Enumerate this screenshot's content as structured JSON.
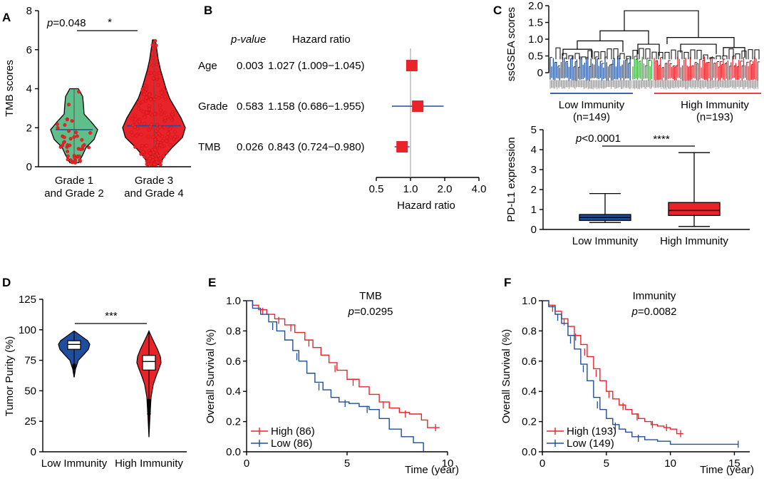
{
  "colors": {
    "green": "#5fbf8a",
    "red": "#e8242a",
    "blue": "#1f4e9e",
    "dend_green": "#3aa83a",
    "black": "#000000",
    "grey": "#9a9a9a"
  },
  "chart_data": [
    {
      "panel": "A",
      "type": "violin",
      "ylabel": "TMB scores",
      "ylim": [
        0,
        8
      ],
      "yticks": [
        "0",
        "2",
        "4",
        "6",
        "8"
      ],
      "groups": [
        {
          "label_line1": "Grade 1",
          "label_line2": "and Grade 2",
          "median": 1.9,
          "min": 0.2,
          "max": 4.0,
          "color": "#5fbf8a",
          "n_points": 45
        },
        {
          "label_line1": "Grade 3",
          "label_line2": "and Grade 4",
          "median": 2.1,
          "min": 0.1,
          "max": 6.5,
          "color": "#e8242a",
          "n_points": 220
        }
      ],
      "p_label": "p",
      "p_value": "=0.048",
      "sig": "*"
    },
    {
      "panel": "B",
      "type": "forest",
      "header_p": "p-value",
      "header_hr": "Hazard ratio",
      "xlabel": "Hazard ratio",
      "xticks": [
        "0.5",
        "1.0",
        "2.0",
        "4.0"
      ],
      "xtick_values": [
        0.5,
        1.0,
        2.0,
        4.0
      ],
      "rows": [
        {
          "name": "Age",
          "p": "0.003",
          "hr_text": "1.027 (1.009−1.045)",
          "hr": 1.027,
          "lo": 1.009,
          "hi": 1.045
        },
        {
          "name": "Grade",
          "p": "0.583",
          "hr_text": "1.158 (0.686−1.955)",
          "hr": 1.158,
          "lo": 0.686,
          "hi": 1.955
        },
        {
          "name": "TMB",
          "p": "0.026",
          "hr_text": "0.843 (0.724−0.980)",
          "hr": 0.843,
          "lo": 0.724,
          "hi": 0.98
        }
      ]
    },
    {
      "panel": "C-top",
      "type": "dendrogram",
      "ylabel": "ssGSEA scores",
      "ylim": [
        0,
        2.0
      ],
      "yticks": [
        "0",
        "0.5",
        "1.0",
        "1.5",
        "2.0"
      ],
      "ytick_values": [
        0,
        0.5,
        1.0,
        1.5,
        2.0
      ],
      "clusters": [
        {
          "label": "Low Immunity",
          "n": "(n=149)",
          "color": "#1f4e9e"
        },
        {
          "label": "High Immunity",
          "n": "(n=193)",
          "color": "#e8242a"
        }
      ]
    },
    {
      "panel": "C-bottom",
      "type": "box",
      "ylabel": "PD-L1 expression",
      "ylim": [
        0,
        5
      ],
      "yticks": [
        "0",
        "1",
        "2",
        "3",
        "4",
        "5"
      ],
      "groups": [
        {
          "label": "Low Immunity",
          "min": 0.35,
          "q1": 0.45,
          "median": 0.6,
          "q3": 0.75,
          "max": 1.8,
          "color": "#1f4e9e"
        },
        {
          "label": "High Immunity",
          "min": 0.15,
          "q1": 0.7,
          "median": 0.95,
          "q3": 1.35,
          "max": 3.85,
          "color": "#e8242a"
        }
      ],
      "p_label": "p",
      "p_value": "<0.0001",
      "sig": "****"
    },
    {
      "panel": "D",
      "type": "violin",
      "ylabel": "Tumor Purity (%)",
      "ylim": [
        0,
        125
      ],
      "yticks": [
        "0",
        "25",
        "50",
        "75",
        "100",
        "125"
      ],
      "groups": [
        {
          "label": "Low Immunity",
          "median": 88,
          "q1": 84,
          "q3": 91,
          "min": 61,
          "max": 99,
          "color": "#1f4e9e"
        },
        {
          "label": "High Immunity",
          "median": 74,
          "q1": 67,
          "q3": 79,
          "min": 12,
          "max": 99,
          "color": "#e8242a"
        }
      ],
      "sig": "***"
    },
    {
      "panel": "E",
      "type": "line",
      "subtype": "kaplan-meier",
      "title": "TMB",
      "p_label": "p",
      "p_value": "=0.0295",
      "xlabel": "Time (year)",
      "ylabel": "Overall Survival (%)",
      "xlim": [
        0,
        10
      ],
      "ylim": [
        0,
        1.0
      ],
      "xticks": [
        "0",
        "5",
        "10"
      ],
      "xtick_values": [
        0,
        5,
        10
      ],
      "yticks": [
        "0.0",
        "0.2",
        "0.4",
        "0.6",
        "0.8",
        "1.0"
      ],
      "ytick_values": [
        0,
        0.2,
        0.4,
        0.6,
        0.8,
        1.0
      ],
      "series": [
        {
          "name": "High (86)",
          "color": "#e8242a",
          "x": [
            0,
            0.3,
            0.6,
            1.0,
            1.4,
            1.9,
            2.4,
            2.9,
            3.3,
            3.7,
            4.1,
            4.5,
            5.0,
            5.6,
            6.1,
            6.6,
            7.1,
            7.6,
            8.1,
            8.7,
            9.0,
            9.6
          ],
          "y": [
            1.0,
            0.97,
            0.94,
            0.91,
            0.88,
            0.84,
            0.79,
            0.74,
            0.69,
            0.64,
            0.59,
            0.54,
            0.48,
            0.43,
            0.38,
            0.33,
            0.29,
            0.26,
            0.25,
            0.21,
            0.16,
            0.16
          ],
          "censors": [
            [
              0.8,
              0.93
            ],
            [
              1.6,
              0.87
            ],
            [
              2.2,
              0.82
            ],
            [
              3.1,
              0.72
            ],
            [
              4.4,
              0.55
            ],
            [
              5.3,
              0.46
            ],
            [
              6.8,
              0.31
            ],
            [
              7.9,
              0.25
            ],
            [
              9.4,
              0.16
            ]
          ]
        },
        {
          "name": "Low (86)",
          "color": "#1f4e9e",
          "x": [
            0,
            0.3,
            0.7,
            1.1,
            1.5,
            1.9,
            2.3,
            2.6,
            3.0,
            3.4,
            3.8,
            4.2,
            4.6,
            5.1,
            5.6,
            6.1,
            6.6,
            7.1,
            7.7,
            8.3,
            8.8
          ],
          "y": [
            1.0,
            0.95,
            0.91,
            0.86,
            0.8,
            0.74,
            0.67,
            0.6,
            0.52,
            0.46,
            0.41,
            0.36,
            0.33,
            0.32,
            0.3,
            0.28,
            0.22,
            0.15,
            0.1,
            0.06,
            0.0
          ],
          "censors": [
            [
              1.3,
              0.83
            ],
            [
              2.5,
              0.63
            ],
            [
              3.6,
              0.43
            ],
            [
              4.9,
              0.32
            ],
            [
              6.0,
              0.28
            ]
          ]
        }
      ]
    },
    {
      "panel": "F",
      "type": "line",
      "subtype": "kaplan-meier",
      "title": "Immunity",
      "p_label": "p",
      "p_value": "=0.0082",
      "xlabel": "Time (year)",
      "ylabel": "Overall Survival (%)",
      "xlim": [
        0,
        16
      ],
      "ylim": [
        0,
        1.0
      ],
      "xticks": [
        "0",
        "5",
        "10",
        "15"
      ],
      "xtick_values": [
        0,
        5,
        10,
        15
      ],
      "yticks": [
        "0.0",
        "0.2",
        "0.4",
        "0.6",
        "0.8",
        "1.0"
      ],
      "ytick_values": [
        0,
        0.2,
        0.4,
        0.6,
        0.8,
        1.0
      ],
      "series": [
        {
          "name": "High (193)",
          "color": "#e8242a",
          "x": [
            0,
            0.5,
            1.0,
            1.5,
            2.0,
            2.5,
            3.0,
            3.5,
            4.0,
            4.5,
            5.0,
            5.5,
            6.0,
            6.5,
            7.0,
            7.5,
            8.0,
            8.5,
            9.0,
            9.5,
            10.0,
            10.5,
            11.0
          ],
          "y": [
            1.0,
            0.97,
            0.93,
            0.88,
            0.83,
            0.77,
            0.71,
            0.63,
            0.55,
            0.47,
            0.4,
            0.35,
            0.31,
            0.28,
            0.25,
            0.22,
            0.2,
            0.18,
            0.17,
            0.16,
            0.15,
            0.12,
            0.12
          ],
          "censors": [
            [
              0.8,
              0.95
            ],
            [
              1.7,
              0.86
            ],
            [
              2.6,
              0.76
            ],
            [
              3.3,
              0.66
            ],
            [
              4.2,
              0.52
            ],
            [
              5.2,
              0.38
            ],
            [
              6.3,
              0.3
            ],
            [
              7.4,
              0.23
            ],
            [
              8.6,
              0.18
            ],
            [
              9.7,
              0.16
            ],
            [
              10.8,
              0.12
            ]
          ]
        },
        {
          "name": "Low (149)",
          "color": "#1f4e9e",
          "x": [
            0,
            0.5,
            1.0,
            1.5,
            2.0,
            2.5,
            3.0,
            3.5,
            4.0,
            4.5,
            5.0,
            5.5,
            6.0,
            6.5,
            7.0,
            8.0,
            9.0,
            10.0,
            15.3
          ],
          "y": [
            1.0,
            0.96,
            0.91,
            0.85,
            0.77,
            0.68,
            0.58,
            0.47,
            0.36,
            0.28,
            0.22,
            0.18,
            0.15,
            0.13,
            0.1,
            0.08,
            0.07,
            0.05,
            0.05
          ],
          "censors": [
            [
              1.2,
              0.89
            ],
            [
              2.2,
              0.74
            ],
            [
              3.2,
              0.55
            ],
            [
              4.3,
              0.31
            ],
            [
              5.7,
              0.17
            ],
            [
              7.5,
              0.09
            ],
            [
              15.3,
              0.05
            ]
          ]
        }
      ]
    }
  ]
}
